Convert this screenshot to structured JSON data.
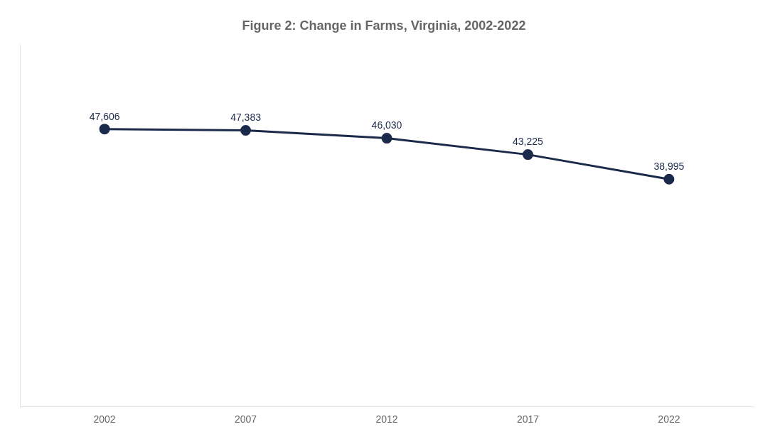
{
  "chart_data": {
    "type": "line",
    "title": "Figure 2: Change in Farms, Virginia, 2002-2022",
    "x": [
      2002,
      2007,
      2012,
      2017,
      2022
    ],
    "values": [
      47606,
      47383,
      46030,
      43225,
      38995
    ],
    "value_labels": [
      "47,606",
      "47,383",
      "46,030",
      "43,225",
      "38,995"
    ],
    "color": "#1b2a4a",
    "marker": "circle",
    "xlim": [
      1999,
      2025
    ],
    "xticks": [
      2002,
      2007,
      2012,
      2017,
      2022
    ],
    "ylim": [
      0,
      62000
    ],
    "tick_labels": "x",
    "grid": false,
    "data_labels": true
  }
}
